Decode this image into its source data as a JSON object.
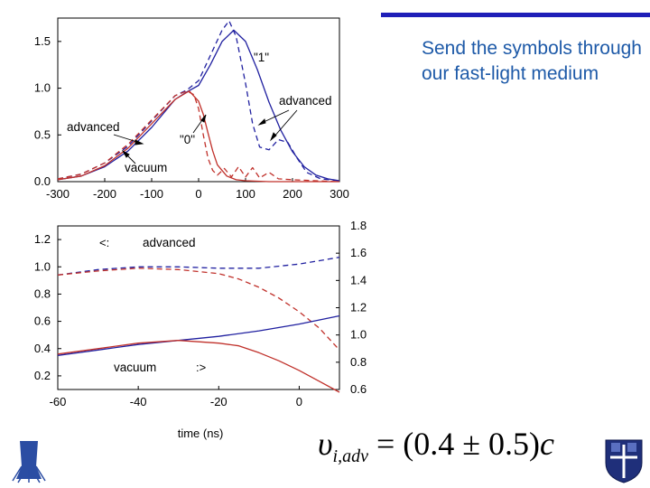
{
  "slide": {
    "text": "Send the symbols through our fast-light medium",
    "formula": {
      "symbol": "υ",
      "subscript": "i,adv",
      "equals": "=",
      "expression": "(0.4 ± 0.5)",
      "unit": "c"
    },
    "colors": {
      "bar": "#1f1fb8",
      "text": "#1e5aa8"
    }
  },
  "chart_data": [
    {
      "type": "line",
      "xlim": [
        -300,
        300
      ],
      "ylim": [
        0,
        1.75
      ],
      "x_ticks": [
        "-300",
        "-200",
        "-100",
        "0",
        "100",
        "200",
        "300"
      ],
      "y_ticks": [
        "0.0",
        "0.5",
        "1.0",
        "1.5"
      ],
      "annotations": [
        "\"1\"",
        "advanced",
        "advanced",
        "\"0\"",
        "vacuum"
      ],
      "series": [
        {
          "color": "#2020a0",
          "style": "solid",
          "x": [
            -300,
            -250,
            -200,
            -150,
            -100,
            -50,
            -25,
            0,
            25,
            50,
            75,
            100,
            125,
            150,
            175,
            200,
            225,
            250,
            275,
            300
          ],
          "y": [
            0.02,
            0.06,
            0.16,
            0.33,
            0.58,
            0.88,
            0.96,
            1.03,
            1.25,
            1.5,
            1.62,
            1.5,
            1.2,
            0.85,
            0.55,
            0.32,
            0.16,
            0.07,
            0.03,
            0.01
          ]
        },
        {
          "color": "#2020a0",
          "style": "dashed",
          "x": [
            -300,
            -250,
            -200,
            -150,
            -100,
            -50,
            -25,
            0,
            25,
            50,
            65,
            80,
            100,
            115,
            130,
            150,
            170,
            190,
            210,
            230,
            260,
            300
          ],
          "y": [
            0.03,
            0.08,
            0.2,
            0.38,
            0.65,
            0.92,
            0.98,
            1.08,
            1.35,
            1.62,
            1.72,
            1.55,
            1.05,
            0.62,
            0.37,
            0.34,
            0.45,
            0.42,
            0.25,
            0.1,
            0.03,
            0.01
          ]
        },
        {
          "color": "#c0302a",
          "style": "solid",
          "x": [
            -300,
            -250,
            -200,
            -150,
            -100,
            -50,
            -20,
            0,
            10,
            20,
            30,
            40,
            60,
            80,
            100,
            150,
            200,
            250,
            300
          ],
          "y": [
            0.02,
            0.06,
            0.17,
            0.36,
            0.62,
            0.88,
            0.97,
            0.86,
            0.72,
            0.52,
            0.33,
            0.18,
            0.06,
            0.02,
            0.01,
            0.0,
            0.0,
            0.0,
            0.0
          ]
        },
        {
          "color": "#c0302a",
          "style": "dashed",
          "x": [
            -300,
            -250,
            -200,
            -150,
            -100,
            -50,
            -25,
            -10,
            0,
            10,
            20,
            30,
            40,
            55,
            70,
            85,
            100,
            115,
            130,
            150,
            170,
            200,
            250,
            300
          ],
          "y": [
            0.03,
            0.08,
            0.2,
            0.4,
            0.66,
            0.92,
            0.97,
            0.93,
            0.78,
            0.5,
            0.25,
            0.12,
            0.07,
            0.14,
            0.05,
            0.16,
            0.05,
            0.15,
            0.04,
            0.1,
            0.03,
            0.02,
            0.01,
            0.0
          ]
        }
      ]
    },
    {
      "type": "line",
      "xlabel": "time (ns)",
      "xlim": [
        -60,
        10
      ],
      "ylim": [
        0.1,
        1.3
      ],
      "y2lim": [
        0.6,
        1.8
      ],
      "x_ticks": [
        "-60",
        "-40",
        "-20",
        "0"
      ],
      "y_ticks": [
        "0.2",
        "0.4",
        "0.6",
        "0.8",
        "1.0",
        "1.2"
      ],
      "y2_ticks": [
        "0.6",
        "0.8",
        "1.0",
        "1.2",
        "1.4",
        "1.6",
        "1.8"
      ],
      "annotations": [
        "advanced",
        "vacuum"
      ],
      "series": [
        {
          "color": "#2020a0",
          "style": "dashed",
          "axis": "left",
          "x": [
            -60,
            -50,
            -40,
            -30,
            -20,
            -10,
            0,
            10
          ],
          "y": [
            0.94,
            0.98,
            1.0,
            1.0,
            0.99,
            0.99,
            1.02,
            1.07
          ]
        },
        {
          "color": "#c0302a",
          "style": "dashed",
          "axis": "left",
          "x": [
            -60,
            -50,
            -40,
            -30,
            -20,
            -15,
            -10,
            -5,
            0,
            5,
            10
          ],
          "y": [
            0.94,
            0.97,
            0.99,
            0.98,
            0.95,
            0.91,
            0.85,
            0.77,
            0.67,
            0.55,
            0.39
          ]
        },
        {
          "color": "#2020a0",
          "style": "solid",
          "axis": "left",
          "x": [
            -60,
            -50,
            -40,
            -30,
            -20,
            -10,
            0,
            10
          ],
          "y": [
            0.35,
            0.39,
            0.43,
            0.46,
            0.49,
            0.53,
            0.58,
            0.64
          ]
        },
        {
          "color": "#c0302a",
          "style": "solid",
          "axis": "left",
          "x": [
            -60,
            -50,
            -40,
            -30,
            -20,
            -15,
            -10,
            -5,
            0,
            5,
            10
          ],
          "y": [
            0.36,
            0.4,
            0.44,
            0.46,
            0.44,
            0.42,
            0.37,
            0.31,
            0.24,
            0.16,
            0.08
          ]
        }
      ]
    }
  ]
}
